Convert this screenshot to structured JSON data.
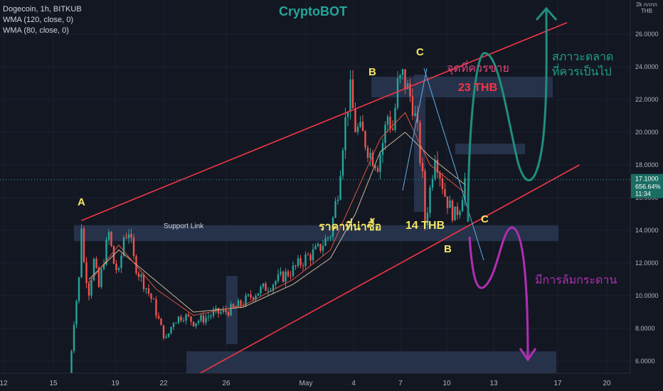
{
  "header": {
    "symbol_line": "Dogecoin, 1h, BITKUB",
    "indicator_1": "WMA (120, close, 0)",
    "indicator_2": "WMA (80, close, 0)",
    "brand": "CryptoBOT"
  },
  "price_axis": {
    "currency_line_1": "2k กกกก",
    "currency_line_2": "THB",
    "ticks": [
      "26.0000",
      "24.0000",
      "22.0000",
      "20.0000",
      "18.0000",
      "16.0000",
      "14.0000",
      "12.0000",
      "10.0000",
      "8.0000",
      "6.0000"
    ],
    "last_price": "17.1000",
    "last_change": "656.64%",
    "countdown": "11:34"
  },
  "time_axis": {
    "ticks": [
      "12",
      "15",
      "19",
      "22",
      "26",
      "May",
      "4",
      "7",
      "10",
      "13",
      "17",
      "20"
    ]
  },
  "annotations": {
    "wave_A": "A",
    "wave_B_top": "B",
    "wave_C_top": "C",
    "wave_B_bottom": "B",
    "wave_C_bottom": "C",
    "sell_point": "จุดที่ควรขาย",
    "target_23": "23 THB",
    "market_up": "สภาวะตลาด",
    "market_up_2": "ที่ควรเป็นไป",
    "buy_price": "ราคาที่น่าซื้อ",
    "support_14": "14 THB",
    "crash": "มีการล้มกระดาน",
    "support_link": "Support Link"
  },
  "colors": {
    "background": "#131722",
    "up_candle": "#26a69a",
    "down_candle": "#ef5350",
    "channel": "#f23645",
    "wma120": "#c9b69a",
    "wma80": "#e0523f",
    "zone": "#2a3a55",
    "teal_arrow": "#1f8f7f",
    "purple_arrow": "#b02fb3",
    "label_yellow": "#f5e663",
    "label_red": "#f23645",
    "label_pink": "#e0447a"
  },
  "chart_data": {
    "type": "candlestick",
    "title": "Dogecoin, 1h, BITKUB",
    "ylabel": "THB",
    "ylim": [
      5,
      27.3
    ],
    "x_ticks": [
      "12",
      "15",
      "19",
      "22",
      "26",
      "May",
      "4",
      "7",
      "10",
      "13",
      "17",
      "20"
    ],
    "last_price": 17.1,
    "price_path": [
      [
        0,
        5.0
      ],
      [
        2,
        8.5
      ],
      [
        4,
        11.0
      ],
      [
        5,
        14.4
      ],
      [
        6,
        12.0
      ],
      [
        8,
        10.3
      ],
      [
        10,
        12.1
      ],
      [
        12,
        10.5
      ],
      [
        14,
        12.3
      ],
      [
        16,
        13.8
      ],
      [
        18,
        12.0
      ],
      [
        20,
        11.3
      ],
      [
        22,
        13.6
      ],
      [
        24,
        14.0
      ],
      [
        26,
        12.2
      ],
      [
        28,
        11.4
      ],
      [
        31,
        10.5
      ],
      [
        34,
        9.5
      ],
      [
        37,
        8.0
      ],
      [
        39,
        7.3
      ],
      [
        42,
        8.5
      ],
      [
        46,
        8.8
      ],
      [
        50,
        8.4
      ],
      [
        54,
        8.6
      ],
      [
        58,
        8.9
      ],
      [
        62,
        9.0
      ],
      [
        66,
        9.2
      ],
      [
        70,
        9.6
      ],
      [
        75,
        10.2
      ],
      [
        80,
        10.6
      ],
      [
        85,
        11.1
      ],
      [
        90,
        11.6
      ],
      [
        95,
        12.3
      ],
      [
        100,
        12.8
      ],
      [
        105,
        13.8
      ],
      [
        108,
        16.5
      ],
      [
        110,
        19.5
      ],
      [
        112,
        21.8
      ],
      [
        113,
        22.4
      ],
      [
        115,
        20.3
      ],
      [
        118,
        19.8
      ],
      [
        121,
        18.7
      ],
      [
        124,
        18.1
      ],
      [
        126,
        19.4
      ],
      [
        128,
        21.0
      ],
      [
        130,
        20.2
      ],
      [
        132,
        22.8
      ],
      [
        134,
        23.4
      ],
      [
        136,
        22.6
      ],
      [
        138,
        21.8
      ],
      [
        140,
        19.9
      ],
      [
        142,
        17.1
      ],
      [
        143,
        14.4
      ],
      [
        145,
        16.5
      ],
      [
        147,
        18.9
      ],
      [
        149,
        17.5
      ],
      [
        151,
        16.2
      ],
      [
        153,
        15.4
      ],
      [
        155,
        14.9
      ],
      [
        157,
        15.6
      ],
      [
        159,
        17.1
      ]
    ],
    "wma120": [
      [
        8,
        11.0
      ],
      [
        20,
        12.8
      ],
      [
        35,
        10.9
      ],
      [
        50,
        9.0
      ],
      [
        70,
        9.3
      ],
      [
        90,
        10.7
      ],
      [
        105,
        12.3
      ],
      [
        115,
        15.0
      ],
      [
        125,
        18.8
      ],
      [
        135,
        20.0
      ],
      [
        145,
        18.5
      ],
      [
        159,
        16.8
      ]
    ],
    "wma80": [
      [
        8,
        10.8
      ],
      [
        20,
        13.1
      ],
      [
        35,
        10.4
      ],
      [
        50,
        8.8
      ],
      [
        70,
        9.4
      ],
      [
        90,
        11.0
      ],
      [
        105,
        12.8
      ],
      [
        115,
        16.2
      ],
      [
        125,
        19.6
      ],
      [
        135,
        21.2
      ],
      [
        145,
        18.0
      ],
      [
        159,
        16.3
      ]
    ],
    "support_zone": [
      13.6,
      14.4
    ],
    "resistance_zone": [
      22.3,
      23.4
    ],
    "bottom_zone": [
      5.2,
      6.6
    ],
    "channel_upper": [
      [
        5,
        14.6
      ],
      [
        200,
        26.7
      ]
    ],
    "channel_lower": [
      [
        5,
        5.2
      ],
      [
        205,
        18.0
      ]
    ],
    "scenario_up_target": 23,
    "scenario_support": 14
  }
}
